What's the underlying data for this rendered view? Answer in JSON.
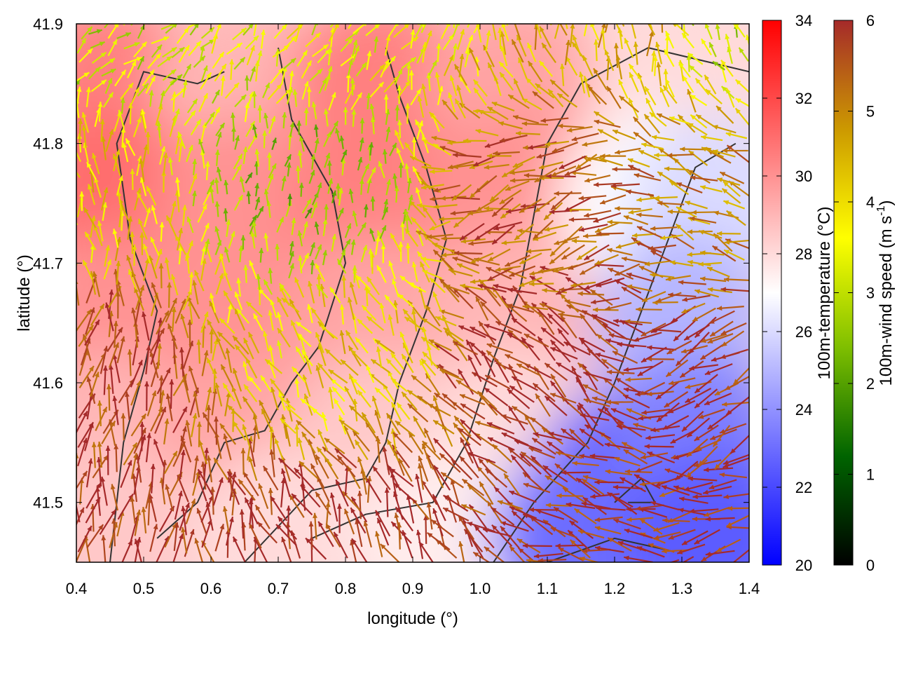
{
  "chart_data": {
    "type": "heatmap",
    "title": "",
    "xlabel": "longitude (°)",
    "ylabel": "latitude (°)",
    "xlim": [
      0.4,
      1.4
    ],
    "ylim": [
      41.45,
      41.9
    ],
    "xticks": [
      0.4,
      0.5,
      0.6,
      0.7,
      0.8,
      0.9,
      1.0,
      1.1,
      1.2,
      1.3,
      1.4
    ],
    "xtick_labels": [
      "0.4",
      "0.5",
      "0.6",
      "0.7",
      "0.8",
      "0.9",
      "1.0",
      "1.1",
      "1.2",
      "1.3",
      "1.4"
    ],
    "yticks": [
      41.5,
      41.6,
      41.7,
      41.8,
      41.9
    ],
    "ytick_labels": [
      "41.5",
      "41.6",
      "41.7",
      "41.8",
      "41.9"
    ],
    "grid": false,
    "temperature_colorbar": {
      "label": "100m-temperature (°C)",
      "range": [
        20,
        34
      ],
      "ticks": [
        20,
        22,
        24,
        26,
        28,
        30,
        32,
        34
      ],
      "tick_labels": [
        "20",
        "22",
        "24",
        "26",
        "28",
        "30",
        "32",
        "34"
      ],
      "colors": [
        "#0000ff",
        "#ffffff",
        "#ff0000"
      ]
    },
    "wind_colorbar": {
      "label_main": "100m-wind speed (m s",
      "label_sup": "-1",
      "label_end": ")",
      "range": [
        0,
        6
      ],
      "ticks": [
        0,
        1,
        2,
        3,
        4,
        5,
        6
      ],
      "tick_labels": [
        "0",
        "1",
        "2",
        "3",
        "4",
        "5",
        "6"
      ],
      "colors": [
        "#000000",
        "#006400",
        "#7fbf00",
        "#ffff00",
        "#cc9900",
        "#a52a2a"
      ]
    },
    "temperature_field_points": [
      {
        "lon": 0.45,
        "lat": 41.85,
        "t": 30.5
      },
      {
        "lon": 0.65,
        "lat": 41.85,
        "t": 29.0
      },
      {
        "lon": 0.85,
        "lat": 41.85,
        "t": 30.5
      },
      {
        "lon": 1.05,
        "lat": 41.85,
        "t": 29.5
      },
      {
        "lon": 1.3,
        "lat": 41.85,
        "t": 28.0
      },
      {
        "lon": 0.45,
        "lat": 41.75,
        "t": 31.0
      },
      {
        "lon": 0.65,
        "lat": 41.75,
        "t": 30.0
      },
      {
        "lon": 0.85,
        "lat": 41.75,
        "t": 30.5
      },
      {
        "lon": 1.05,
        "lat": 41.75,
        "t": 30.0
      },
      {
        "lon": 1.25,
        "lat": 41.75,
        "t": 27.0
      },
      {
        "lon": 1.35,
        "lat": 41.75,
        "t": 26.0
      },
      {
        "lon": 0.45,
        "lat": 41.65,
        "t": 30.0
      },
      {
        "lon": 0.65,
        "lat": 41.65,
        "t": 30.0
      },
      {
        "lon": 0.85,
        "lat": 41.65,
        "t": 29.5
      },
      {
        "lon": 1.05,
        "lat": 41.65,
        "t": 29.0
      },
      {
        "lon": 1.3,
        "lat": 41.65,
        "t": 25.0
      },
      {
        "lon": 0.45,
        "lat": 41.55,
        "t": 29.0
      },
      {
        "lon": 0.65,
        "lat": 41.55,
        "t": 29.5
      },
      {
        "lon": 0.85,
        "lat": 41.55,
        "t": 28.5
      },
      {
        "lon": 1.05,
        "lat": 41.55,
        "t": 28.0
      },
      {
        "lon": 1.22,
        "lat": 41.52,
        "t": 22.0
      },
      {
        "lon": 1.32,
        "lat": 41.55,
        "t": 23.5
      },
      {
        "lon": 0.45,
        "lat": 41.47,
        "t": 28.5
      },
      {
        "lon": 0.7,
        "lat": 41.47,
        "t": 28.0
      },
      {
        "lon": 0.95,
        "lat": 41.47,
        "t": 27.5
      },
      {
        "lon": 1.15,
        "lat": 41.47,
        "t": 23.0
      },
      {
        "lon": 1.35,
        "lat": 41.47,
        "t": 22.5
      }
    ],
    "wind_field_points": [
      {
        "lon": 0.4,
        "lat": 41.9,
        "dir_deg": 40,
        "speed": 3.0
      },
      {
        "lon": 0.8,
        "lat": 41.9,
        "dir_deg": 60,
        "speed": 3.5
      },
      {
        "lon": 1.2,
        "lat": 41.9,
        "dir_deg": 100,
        "speed": 4.5
      },
      {
        "lon": 1.4,
        "lat": 41.9,
        "dir_deg": 120,
        "speed": 3.0
      },
      {
        "lon": 0.4,
        "lat": 41.75,
        "dir_deg": 100,
        "speed": 4.0
      },
      {
        "lon": 0.75,
        "lat": 41.75,
        "dir_deg": 80,
        "speed": 2.5
      },
      {
        "lon": 1.1,
        "lat": 41.75,
        "dir_deg": 200,
        "speed": 5.5
      },
      {
        "lon": 1.4,
        "lat": 41.75,
        "dir_deg": 160,
        "speed": 5.0
      },
      {
        "lon": 0.4,
        "lat": 41.6,
        "dir_deg": 80,
        "speed": 5.8
      },
      {
        "lon": 0.8,
        "lat": 41.62,
        "dir_deg": 120,
        "speed": 4.0
      },
      {
        "lon": 1.1,
        "lat": 41.6,
        "dir_deg": 140,
        "speed": 6.0
      },
      {
        "lon": 1.4,
        "lat": 41.6,
        "dir_deg": 210,
        "speed": 6.0
      },
      {
        "lon": 0.4,
        "lat": 41.45,
        "dir_deg": 80,
        "speed": 6.0
      },
      {
        "lon": 0.8,
        "lat": 41.45,
        "dir_deg": 110,
        "speed": 6.0
      },
      {
        "lon": 1.2,
        "lat": 41.45,
        "dir_deg": 160,
        "speed": 6.0
      },
      {
        "lon": 1.4,
        "lat": 41.45,
        "dir_deg": 200,
        "speed": 6.0
      }
    ],
    "contours": [
      [
        [
          0.45,
          41.45
        ],
        [
          0.47,
          41.55
        ],
        [
          0.5,
          41.61
        ],
        [
          0.52,
          41.66
        ],
        [
          0.48,
          41.72
        ],
        [
          0.46,
          41.8
        ],
        [
          0.5,
          41.86
        ],
        [
          0.58,
          41.85
        ],
        [
          0.62,
          41.86
        ]
      ],
      [
        [
          0.52,
          41.47
        ],
        [
          0.58,
          41.5
        ],
        [
          0.62,
          41.55
        ],
        [
          0.68,
          41.56
        ],
        [
          0.72,
          41.6
        ],
        [
          0.76,
          41.63
        ],
        [
          0.8,
          41.7
        ],
        [
          0.78,
          41.76
        ],
        [
          0.72,
          41.82
        ],
        [
          0.7,
          41.88
        ]
      ],
      [
        [
          0.65,
          41.45
        ],
        [
          0.75,
          41.51
        ],
        [
          0.83,
          41.52
        ],
        [
          0.86,
          41.55
        ],
        [
          0.88,
          41.6
        ],
        [
          0.92,
          41.66
        ],
        [
          0.95,
          41.72
        ],
        [
          0.92,
          41.78
        ],
        [
          0.88,
          41.84
        ],
        [
          0.86,
          41.88
        ]
      ],
      [
        [
          0.75,
          41.47
        ],
        [
          0.83,
          41.49
        ],
        [
          0.93,
          41.5
        ],
        [
          0.98,
          41.55
        ],
        [
          1.02,
          41.62
        ],
        [
          1.06,
          41.68
        ],
        [
          1.08,
          41.74
        ],
        [
          1.1,
          41.8
        ],
        [
          1.15,
          41.85
        ],
        [
          1.25,
          41.88
        ],
        [
          1.4,
          41.86
        ]
      ],
      [
        [
          1.02,
          41.45
        ],
        [
          1.08,
          41.5
        ],
        [
          1.16,
          41.55
        ],
        [
          1.2,
          41.6
        ],
        [
          1.24,
          41.66
        ],
        [
          1.28,
          41.72
        ],
        [
          1.32,
          41.78
        ],
        [
          1.38,
          41.8
        ]
      ],
      [
        [
          1.1,
          41.45
        ],
        [
          1.2,
          41.47
        ],
        [
          1.28,
          41.46
        ]
      ],
      [
        [
          1.2,
          41.5
        ],
        [
          1.24,
          41.52
        ],
        [
          1.26,
          41.5
        ],
        [
          1.22,
          41.5
        ]
      ]
    ]
  }
}
